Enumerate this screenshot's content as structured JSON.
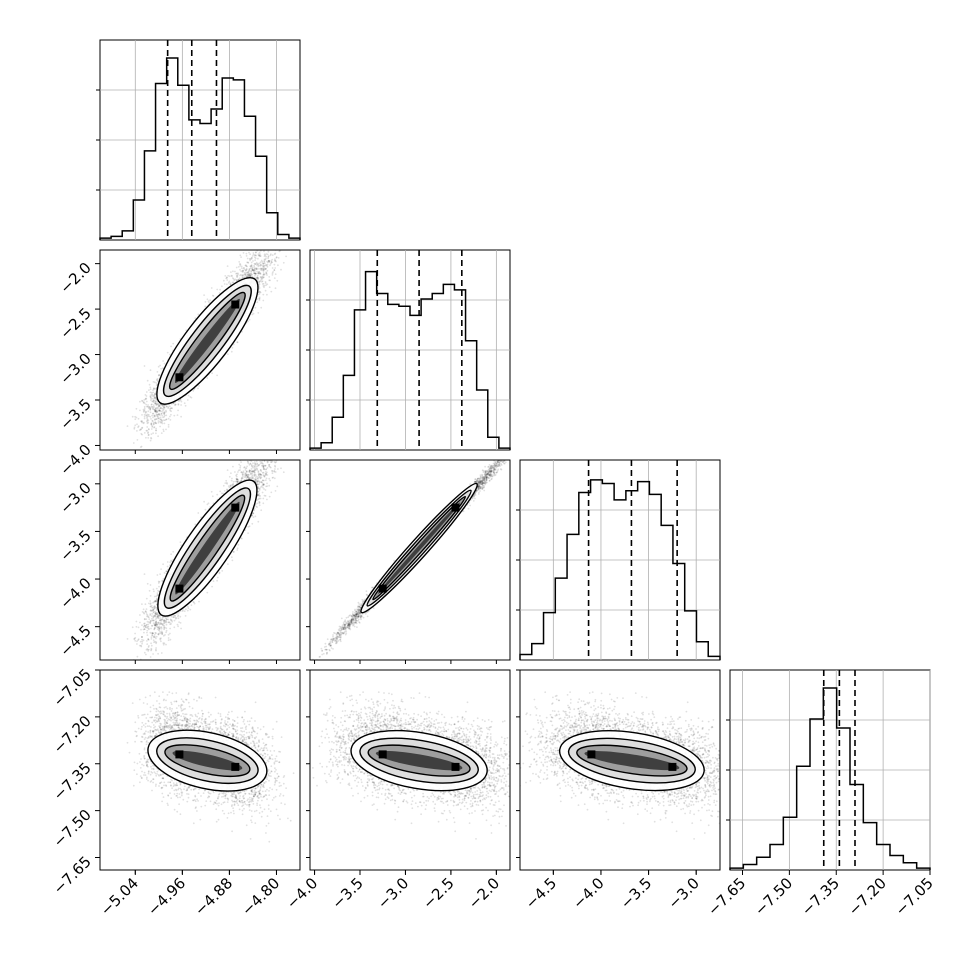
{
  "chart_data": {
    "type": "corner",
    "parameters": [
      {
        "range": [
          -5.1,
          -4.76
        ],
        "ticks": [
          -5.04,
          -4.96,
          -4.88,
          -4.8
        ],
        "tick_labels": [
          "−5.04",
          "−4.96",
          "−4.88",
          "−4.80"
        ],
        "quantiles": [
          -4.985,
          -4.944,
          -4.902
        ]
      },
      {
        "range": [
          -4.05,
          -1.85
        ],
        "ticks": [
          -4.0,
          -3.5,
          -3.0,
          -2.5,
          -2.0
        ],
        "tick_labels": [
          "−4.0",
          "−3.5",
          "−3.0",
          "−2.5",
          "−2.0"
        ],
        "quantiles": [
          -3.31,
          -2.85,
          -2.38
        ]
      },
      {
        "range": [
          -4.85,
          -2.75
        ],
        "ticks": [
          -4.5,
          -4.0,
          -3.5,
          -3.0
        ],
        "tick_labels": [
          "−4.5",
          "−4.0",
          "−3.5",
          "−3.0"
        ],
        "quantiles": [
          -4.13,
          -3.68,
          -3.2
        ]
      },
      {
        "range": [
          -7.69,
          -7.05
        ],
        "ticks": [
          -7.65,
          -7.5,
          -7.35,
          -7.2,
          -7.05
        ],
        "tick_labels": [
          "−7.65",
          "−7.50",
          "−7.35",
          "−7.20",
          "−7.05"
        ],
        "quantiles": [
          -7.39,
          -7.34,
          -7.29
        ]
      }
    ],
    "histograms": [
      [
        0.01,
        0.02,
        0.05,
        0.22,
        0.49,
        0.86,
        1.0,
        0.85,
        0.66,
        0.64,
        0.72,
        0.89,
        0.88,
        0.68,
        0.46,
        0.15,
        0.03,
        0.01
      ],
      [
        0.01,
        0.04,
        0.18,
        0.41,
        0.77,
        0.98,
        0.86,
        0.8,
        0.79,
        0.74,
        0.83,
        0.86,
        0.91,
        0.88,
        0.6,
        0.33,
        0.07,
        0.01
      ],
      [
        0.03,
        0.09,
        0.26,
        0.45,
        0.69,
        0.92,
        0.99,
        0.97,
        0.88,
        0.93,
        0.98,
        0.91,
        0.74,
        0.53,
        0.27,
        0.1,
        0.02
      ],
      [
        0.01,
        0.03,
        0.07,
        0.14,
        0.29,
        0.57,
        0.83,
        1.0,
        0.78,
        0.47,
        0.26,
        0.14,
        0.08,
        0.04,
        0.01
      ]
    ]
  }
}
